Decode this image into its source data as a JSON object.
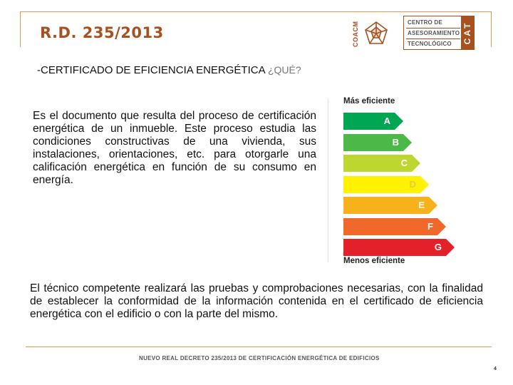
{
  "header": {
    "title": "R.D. 235/2013",
    "logo_coacm": "COACM",
    "cat_lines": [
      "CENTRO DE",
      "ASESORAMIENTO",
      "TECNOLÓGICO"
    ],
    "cat_letters": "CAT"
  },
  "subtitle": {
    "main": "-CERTIFICADO DE EFICIENCIA ENERGÉTICA",
    "question": "¿QUÉ?"
  },
  "paragraph_1": "Es el documento que resulta del proceso de certificación energética de un inmueble. Este proceso estudia las condiciones constructivas de una vivienda, sus instalaciones, orientaciones, etc. para otorgarle una calificación energética en función de su consumo en energía.",
  "energy_label": {
    "top_text": "Más eficiente",
    "bottom_text": "Menos eficiente",
    "classes": [
      {
        "letter": "A",
        "color": "#00a651"
      },
      {
        "letter": "B",
        "color": "#4cb848"
      },
      {
        "letter": "C",
        "color": "#bed630"
      },
      {
        "letter": "D",
        "color": "#fff200"
      },
      {
        "letter": "E",
        "color": "#f7b21b"
      },
      {
        "letter": "F",
        "color": "#f0682a"
      },
      {
        "letter": "G",
        "color": "#e4202a"
      }
    ]
  },
  "paragraph_2": "El técnico competente realizará las pruebas y comprobaciones necesarias, con la finalidad de establecer la conformidad de la información contenida en el certificado de eficiencia energética con el edificio o con la parte del mismo.",
  "footer": {
    "text": "NUEVO REAL DECRETO 235/2013 DE CERTIFICACIÓN ENERGÉTICA DE EDIFICIOS",
    "page": "4"
  }
}
